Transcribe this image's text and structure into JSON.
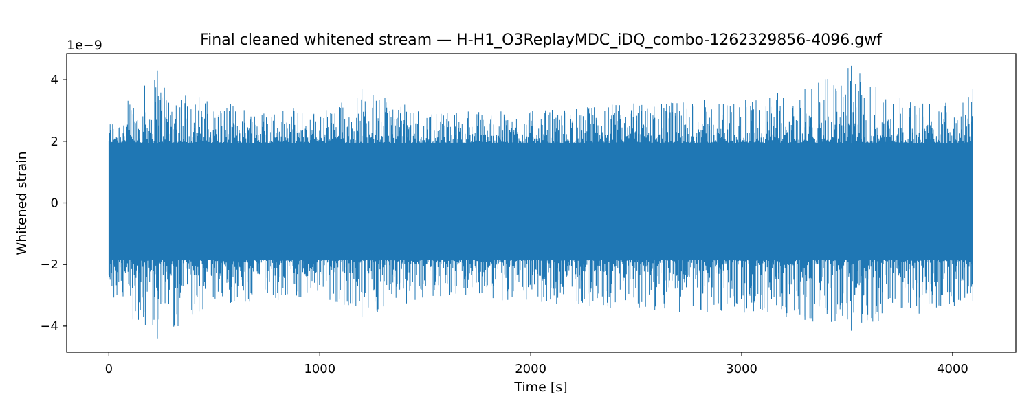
{
  "chart_data": {
    "type": "line",
    "title": "Final cleaned whitened stream — H-H1_O3ReplayMDC_iDQ_combo-1262329856-4096.gwf",
    "xlabel": "Time [s]",
    "ylabel": "Whitened strain",
    "y_offset_text": "1e−9",
    "xlim": [
      -200,
      4300
    ],
    "ylim": [
      -4.85,
      4.85
    ],
    "x_ticks": [
      0,
      1000,
      2000,
      3000,
      4000
    ],
    "x_tick_labels": [
      "0",
      "1000",
      "2000",
      "3000",
      "4000"
    ],
    "y_ticks": [
      -4,
      -2,
      0,
      2,
      4
    ],
    "y_tick_labels": [
      "−4",
      "−2",
      "0",
      "2",
      "4"
    ],
    "series": [
      {
        "color": "#1f77b4",
        "x_range": [
          0,
          4096
        ],
        "core_band": [
          -1.85,
          1.95
        ],
        "envelope_upper": [
          [
            0,
            2.7
          ],
          [
            230,
            4.3
          ],
          [
            500,
            3.3
          ],
          [
            1000,
            3.0
          ],
          [
            1200,
            3.7
          ],
          [
            1500,
            3.0
          ],
          [
            2000,
            3.0
          ],
          [
            2500,
            3.3
          ],
          [
            3000,
            3.4
          ],
          [
            3300,
            3.7
          ],
          [
            3520,
            4.45
          ],
          [
            3800,
            3.3
          ],
          [
            4096,
            3.7
          ]
        ],
        "envelope_lower": [
          [
            0,
            -3.2
          ],
          [
            230,
            -4.4
          ],
          [
            500,
            -3.4
          ],
          [
            1000,
            -3.1
          ],
          [
            1200,
            -3.7
          ],
          [
            1500,
            -3.1
          ],
          [
            2000,
            -3.2
          ],
          [
            2500,
            -3.5
          ],
          [
            3000,
            -3.6
          ],
          [
            3300,
            -3.8
          ],
          [
            3520,
            -4.15
          ],
          [
            3800,
            -3.7
          ],
          [
            4096,
            -3.2
          ]
        ]
      }
    ]
  }
}
